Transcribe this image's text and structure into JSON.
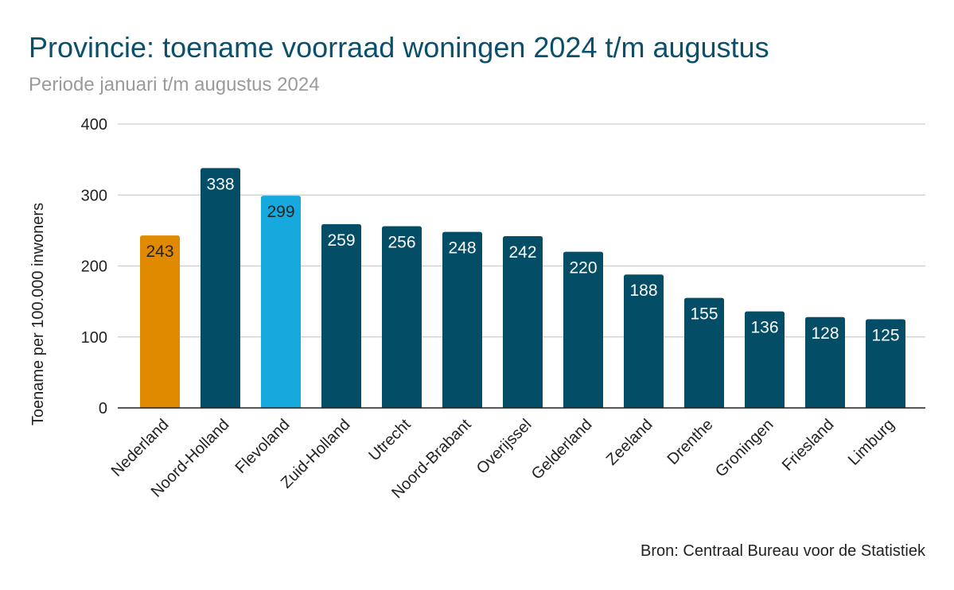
{
  "chart_data": {
    "type": "bar",
    "title": "Provincie: toename voorraad woningen 2024 t/m augustus",
    "subtitle": "Periode januari t/m augustus 2024",
    "y_label": "Toename per 100.000 inwoners",
    "source": "Bron: Centraal Bureau voor de Statistiek",
    "categories": [
      "Nederland",
      "Noord-Holland",
      "Flevoland",
      "Zuid-Holland",
      "Utrecht",
      "Noord-Brabant",
      "Overijssel",
      "Gelderland",
      "Zeeland",
      "Drenthe",
      "Groningen",
      "Friesland",
      "Limburg"
    ],
    "values": [
      243,
      338,
      299,
      259,
      256,
      248,
      242,
      220,
      188,
      155,
      136,
      128,
      125
    ],
    "colors": [
      "#e08a00",
      "#034d66",
      "#16a9de",
      "#034d66",
      "#034d66",
      "#034d66",
      "#034d66",
      "#034d66",
      "#034d66",
      "#034d66",
      "#034d66",
      "#034d66",
      "#034d66"
    ],
    "ylim": [
      0,
      400
    ],
    "yticks": [
      0,
      100,
      200,
      300,
      400
    ],
    "grid": true
  }
}
